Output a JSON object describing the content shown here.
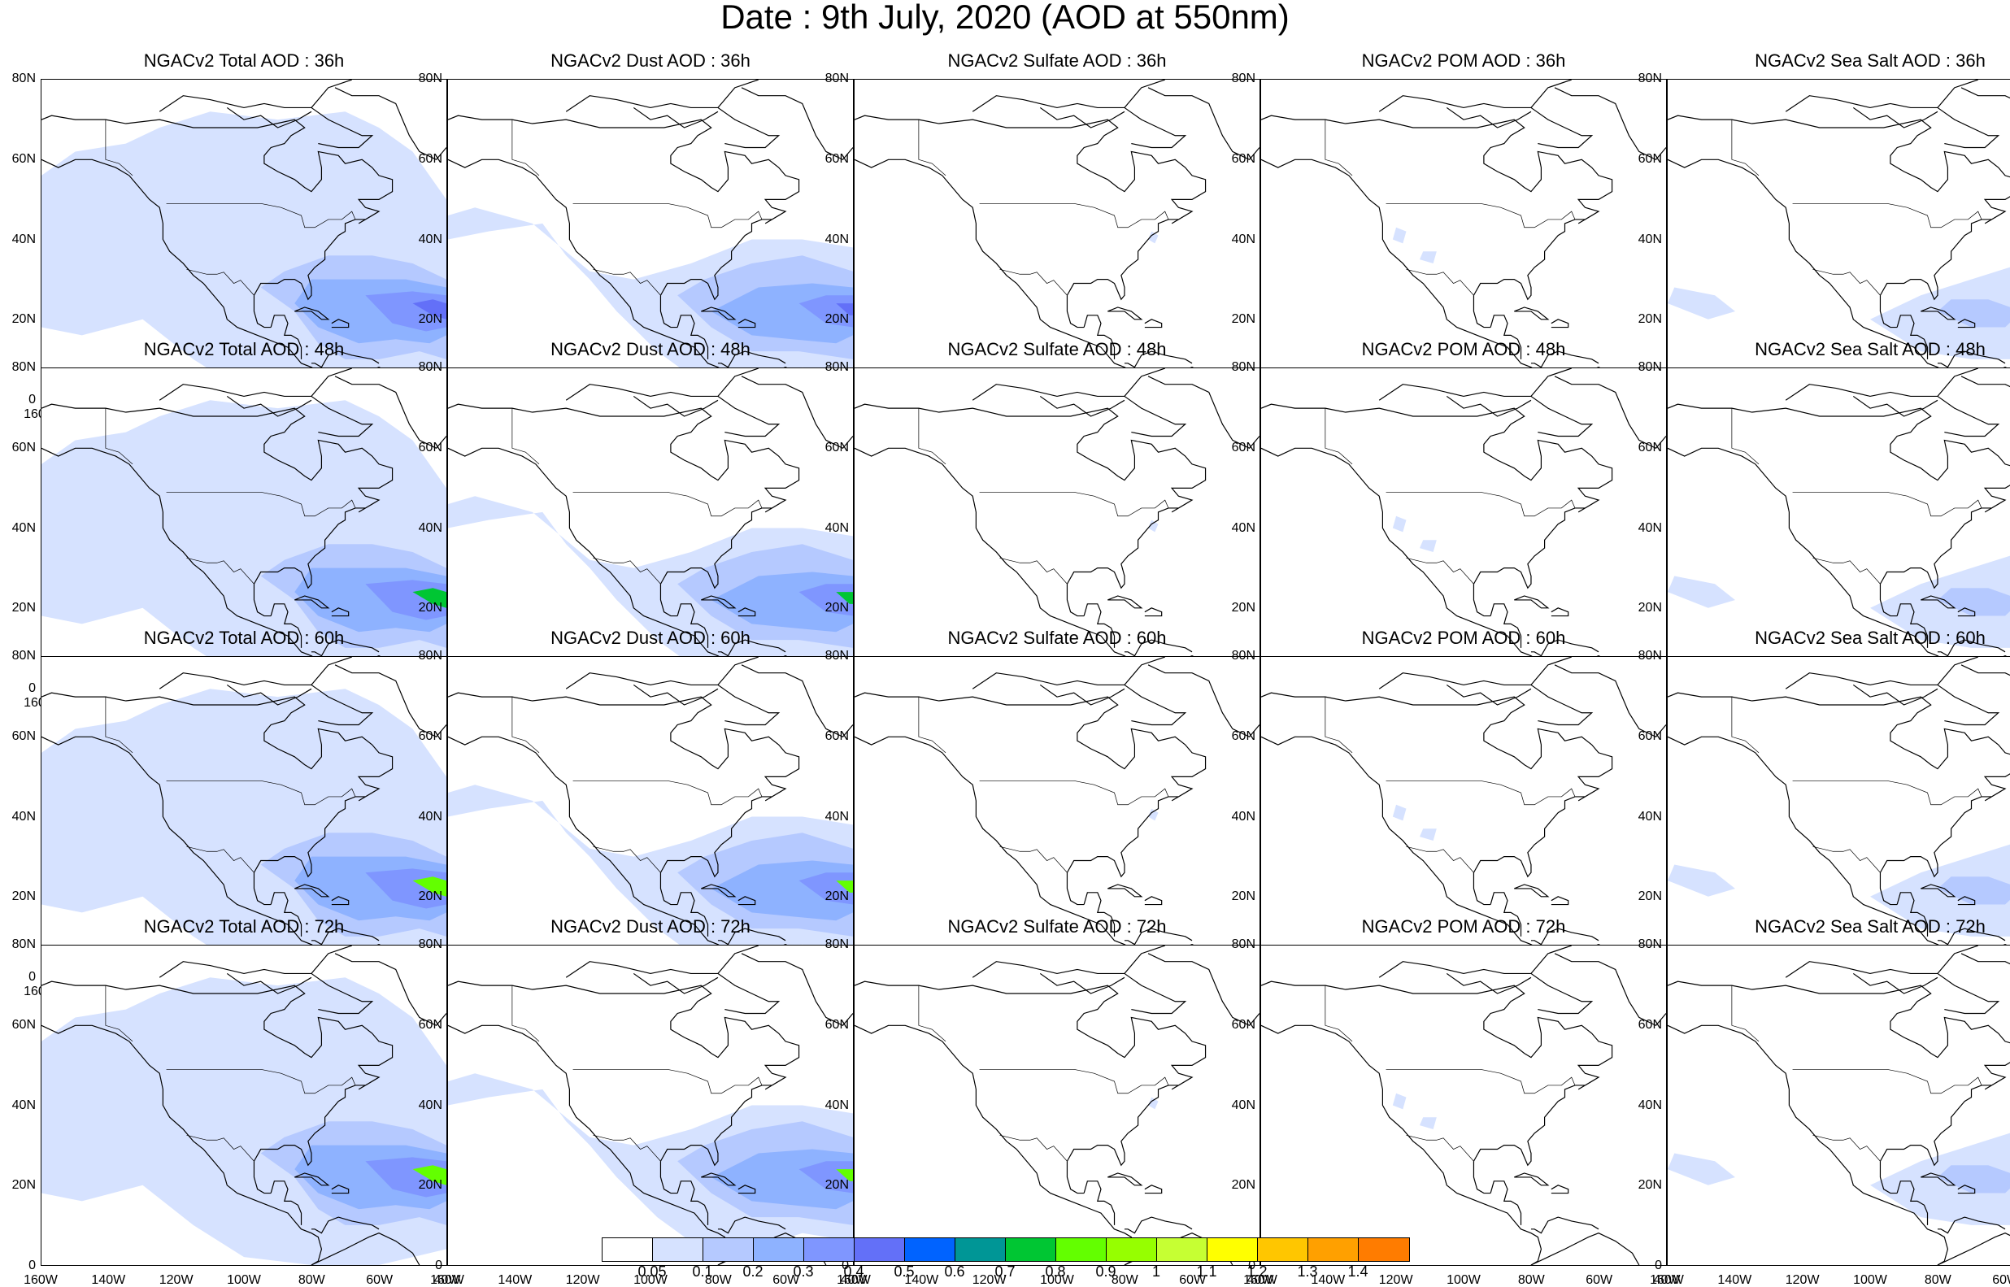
{
  "title": "Date : 9th July, 2020 (AOD at 550nm)",
  "lat_ticks": [
    "80N",
    "60N",
    "40N",
    "20N",
    "0"
  ],
  "lon_ticks": [
    "160W",
    "140W",
    "120W",
    "100W",
    "80W",
    "60W",
    "40W"
  ],
  "map_extent": {
    "lon": [
      -160,
      -40
    ],
    "lat": [
      0,
      80
    ]
  },
  "rows": [
    [
      "NGACv2 Total AOD : 36h",
      "NGACv2 Dust AOD : 36h",
      "NGACv2 Sulfate AOD : 36h",
      "NGACv2 POM AOD : 36h",
      "NGACv2 Sea Salt AOD : 36h"
    ],
    [
      "NGACv2 Total AOD : 48h",
      "NGACv2 Dust AOD : 48h",
      "NGACv2 Sulfate AOD : 48h",
      "NGACv2 POM AOD : 48h",
      "NGACv2 Sea Salt AOD : 48h"
    ],
    [
      "NGACv2 Total AOD : 60h",
      "NGACv2 Dust AOD : 60h",
      "NGACv2 Sulfate AOD : 60h",
      "NGACv2 POM AOD : 60h",
      "NGACv2 Sea Salt AOD : 60h"
    ],
    [
      "NGACv2 Total AOD : 72h",
      "NGACv2 Dust AOD : 72h",
      "NGACv2 Sulfate AOD : 72h",
      "NGACv2 POM AOD : 72h",
      "NGACv2 Sea Salt  AOD : 72h"
    ]
  ],
  "colorbar": {
    "labels": [
      "0.05",
      "0.1",
      "0.2",
      "0.3",
      "0.4",
      "0.5",
      "0.6",
      "0.7",
      "0.8",
      "0.9",
      "1",
      "1.1",
      "1.2",
      "1.3",
      "1.4"
    ],
    "colors": [
      "#ffffff",
      "#d6e2ff",
      "#b5c9ff",
      "#8eb2ff",
      "#7f96ff",
      "#6370f8",
      "#0063ff",
      "#009696",
      "#00c633",
      "#63ff00",
      "#96ff00",
      "#c6ff33",
      "#ffff00",
      "#ffc600",
      "#ffa000",
      "#ff7c00",
      "#ff1900"
    ]
  }
}
